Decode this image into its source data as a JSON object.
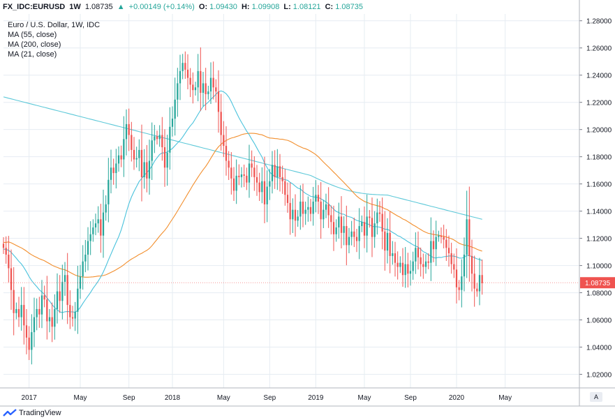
{
  "header": {
    "symbol": "FX_IDC:EURUSD",
    "interval": "1W",
    "last": "1.08735",
    "arrow": "▲",
    "change": "+0.00149 (+0.14%)",
    "o_label": "O:",
    "o_value": "1.09430",
    "h_label": "H:",
    "h_value": "1.09908",
    "l_label": "L:",
    "l_value": "1.08121",
    "c_label": "C:",
    "c_value": "1.08735"
  },
  "legend": {
    "title": "Euro / U.S. Dollar, 1W, IDC",
    "ma55": "MA (55, close)",
    "ma200": "MA (200, close)",
    "ma21": "MA (21, close)"
  },
  "footer": {
    "brand": "TradingView",
    "auto_label": "A"
  },
  "colors": {
    "up": "#26a69a",
    "down": "#ef5350",
    "ma55": "#5cc8d8",
    "ma200": "#f28e2c",
    "ma21": "#49c2dc",
    "grid": "#e6ecf2",
    "last_label": "#ef5350"
  },
  "chart_data": {
    "type": "candlestick",
    "title": "Euro / U.S. Dollar, 1W, IDC",
    "y_axis": {
      "min": 1.01,
      "max": 1.285,
      "ticks": [
        "1.28000",
        "1.26000",
        "1.24000",
        "1.22000",
        "1.20000",
        "1.18000",
        "1.16000",
        "1.14000",
        "1.12000",
        "1.10000",
        "1.08000",
        "1.06000",
        "1.04000",
        "1.02000"
      ],
      "tick_values": [
        1.28,
        1.26,
        1.24,
        1.22,
        1.2,
        1.18,
        1.16,
        1.14,
        1.12,
        1.1,
        1.08,
        1.06,
        1.04,
        1.02
      ]
    },
    "x_axis": {
      "week_min": 0,
      "week_max": 225,
      "ticks": [
        {
          "label": "2017",
          "week": 10
        },
        {
          "label": "May",
          "week": 30
        },
        {
          "label": "Sep",
          "week": 49
        },
        {
          "label": "2018",
          "week": 66
        },
        {
          "label": "May",
          "week": 86
        },
        {
          "label": "Sep",
          "week": 104
        },
        {
          "label": "2019",
          "week": 122
        },
        {
          "label": "May",
          "week": 141
        },
        {
          "label": "Sep",
          "week": 159
        },
        {
          "label": "2020",
          "week": 177
        },
        {
          "label": "May",
          "week": 196
        }
      ]
    },
    "last_price": {
      "label": "1.08735",
      "value": 1.08735
    },
    "closes": [
      1.113,
      1.108,
      1.098,
      1.082,
      1.065,
      1.068,
      1.062,
      1.071,
      1.056,
      1.047,
      1.038,
      1.051,
      1.062,
      1.068,
      1.064,
      1.078,
      1.075,
      1.059,
      1.062,
      1.055,
      1.068,
      1.081,
      1.074,
      1.088,
      1.093,
      1.071,
      1.062,
      1.061,
      1.066,
      1.083,
      1.092,
      1.103,
      1.108,
      1.118,
      1.123,
      1.128,
      1.131,
      1.134,
      1.122,
      1.139,
      1.145,
      1.163,
      1.172,
      1.168,
      1.175,
      1.181,
      1.178,
      1.193,
      1.204,
      1.196,
      1.185,
      1.178,
      1.179,
      1.185,
      1.165,
      1.176,
      1.164,
      1.177,
      1.192,
      1.195,
      1.193,
      1.196,
      1.187,
      1.172,
      1.183,
      1.202,
      1.208,
      1.222,
      1.234,
      1.243,
      1.249,
      1.244,
      1.238,
      1.233,
      1.229,
      1.231,
      1.243,
      1.227,
      1.234,
      1.226,
      1.228,
      1.238,
      1.231,
      1.228,
      1.213,
      1.196,
      1.188,
      1.177,
      1.172,
      1.164,
      1.155,
      1.166,
      1.165,
      1.167,
      1.166,
      1.161,
      1.175,
      1.172,
      1.165,
      1.161,
      1.154,
      1.162,
      1.145,
      1.158,
      1.162,
      1.174,
      1.165,
      1.173,
      1.165,
      1.162,
      1.152,
      1.146,
      1.134,
      1.141,
      1.133,
      1.136,
      1.147,
      1.138,
      1.141,
      1.143,
      1.138,
      1.147,
      1.152,
      1.147,
      1.134,
      1.141,
      1.145,
      1.137,
      1.132,
      1.123,
      1.128,
      1.136,
      1.124,
      1.129,
      1.115,
      1.121,
      1.125,
      1.121,
      1.118,
      1.129,
      1.132,
      1.122,
      1.136,
      1.135,
      1.121,
      1.131,
      1.139,
      1.138,
      1.125,
      1.111,
      1.124,
      1.107,
      1.109,
      1.102,
      1.099,
      1.102,
      1.093,
      1.101,
      1.094,
      1.096,
      1.103,
      1.113,
      1.106,
      1.101,
      1.099,
      1.103,
      1.102,
      1.118,
      1.112,
      1.121,
      1.122,
      1.121,
      1.119,
      1.113,
      1.109,
      1.101,
      1.097,
      1.084,
      1.082,
      1.092,
      1.108,
      1.134,
      1.107,
      1.094,
      1.083,
      1.081,
      1.093,
      1.087
    ]
  }
}
